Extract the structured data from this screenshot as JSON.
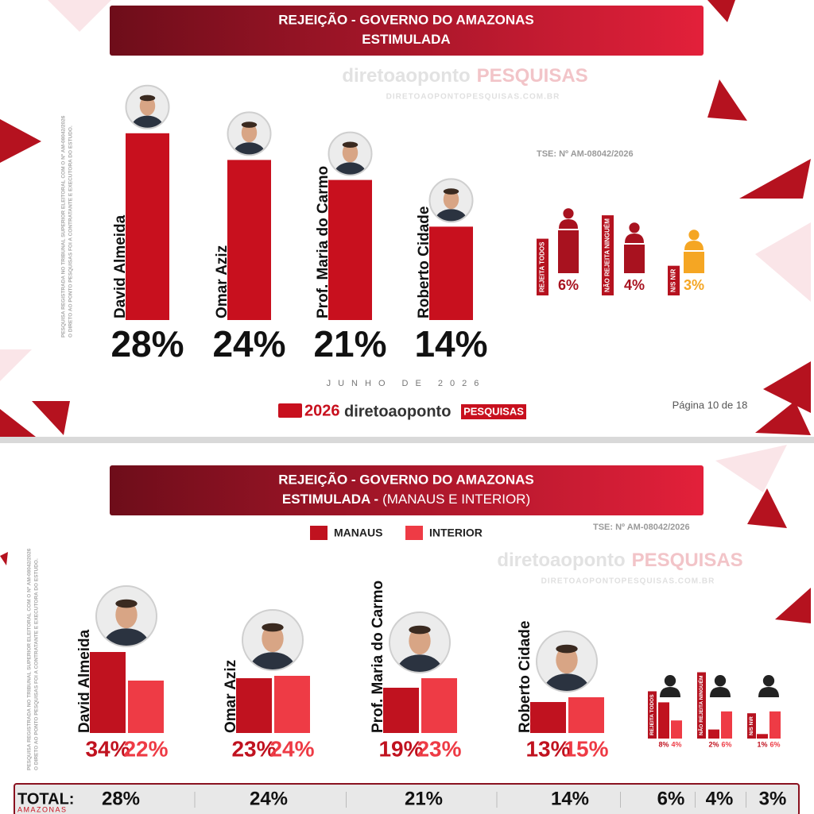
{
  "chart_data": [
    {
      "type": "bar",
      "title": "REJEIÇÃO - GOVERNO DO AMAZONAS",
      "subtitle": "ESTIMULADA",
      "brand": "diretoaoponto",
      "brand_tag": "PESQUISAS",
      "website": "DIRETOAOPONTOPESQUISAS.COM.BR",
      "note": [
        "PESQUISA REGISTRADA NO TRIBUNAL SUPERIOR ELEITORAL COM O Nº AM-08042/2026",
        "O DIRETO AO PONTO PESQUISAS FOI A CONTRATANTE E EXECUTORA DO ESTUDO."
      ],
      "registration": "TSE: Nº AM-08042/2026",
      "categories": [
        "David Almeida",
        "Omar Aziz",
        "Prof. Maria do Carmo",
        "Roberto Cidade"
      ],
      "values": [
        28,
        24,
        21,
        14
      ],
      "value_labels": [
        "28%",
        "24%",
        "21%",
        "14%"
      ],
      "color": "#c8101e",
      "ylim": [
        0,
        30
      ],
      "extra": {
        "categories": [
          "REJEITA TODOS",
          "NÃO REJEITA NINGUÉM",
          "N/S N\\R"
        ],
        "values": [
          6,
          4,
          3
        ],
        "value_labels": [
          "6%",
          "4%",
          "3%"
        ],
        "colors": [
          "#a8121f",
          "#a8121f",
          "#f5a623"
        ],
        "ylim": [
          0,
          10
        ]
      },
      "date": "JUNHO DE 2026",
      "logo_year": "2026",
      "page": "Página 10 de 18"
    },
    {
      "type": "grouped-bar",
      "title": "REJEIÇÃO - GOVERNO DO AMAZONAS",
      "subtitle": "ESTIMULADA -",
      "subtitle_note": "(MANAUS E INTERIOR)",
      "brand": "diretoaoponto",
      "brand_tag": "PESQUISAS",
      "website": "DIRETOAOPONTOPESQUISAS.COM.BR",
      "note": [
        "PESQUISA REGISTRADA NO TRIBUNAL SUPERIOR ELEITORAL COM O Nº AM-08042/2026",
        "O DIRETO AO PONTO PESQUISAS FOI A CONTRATANTE E EXECUTORA DO ESTUDO."
      ],
      "registration": "TSE: Nº AM-08042/2026",
      "categories": [
        "David Almeida",
        "Omar Aziz",
        "Prof. Maria do Carmo",
        "Roberto Cidade"
      ],
      "series": [
        {
          "name": "MANAUS",
          "color": "#c0121f",
          "values": [
            34,
            23,
            19,
            13
          ],
          "value_labels": [
            "34%",
            "23%",
            "19%",
            "13%"
          ]
        },
        {
          "name": "INTERIOR",
          "color": "#ee3b45",
          "values": [
            22,
            24,
            23,
            15
          ],
          "value_labels": [
            "22%",
            "24%",
            "23%",
            "15%"
          ]
        }
      ],
      "ylim": [
        0,
        40
      ],
      "extra": {
        "categories": [
          "REJEITA TODOS",
          "NÃO REJEITA NINGUÉM",
          "N/S N\\R"
        ],
        "series": [
          {
            "values": [
              8,
              2,
              1
            ],
            "value_labels": [
              "8%",
              "2%",
              "1%"
            ]
          },
          {
            "values": [
              4,
              6,
              6
            ],
            "value_labels": [
              "4%",
              "6%",
              "6%"
            ]
          }
        ],
        "ylim": [
          0,
          10
        ]
      },
      "total": {
        "label": "TOTAL:",
        "region": "AMAZONAS",
        "values": [
          28,
          24,
          21,
          14,
          6,
          4,
          3
        ],
        "value_labels": [
          "28%",
          "24%",
          "21%",
          "14%",
          "6%",
          "4%",
          "3%"
        ]
      }
    }
  ]
}
